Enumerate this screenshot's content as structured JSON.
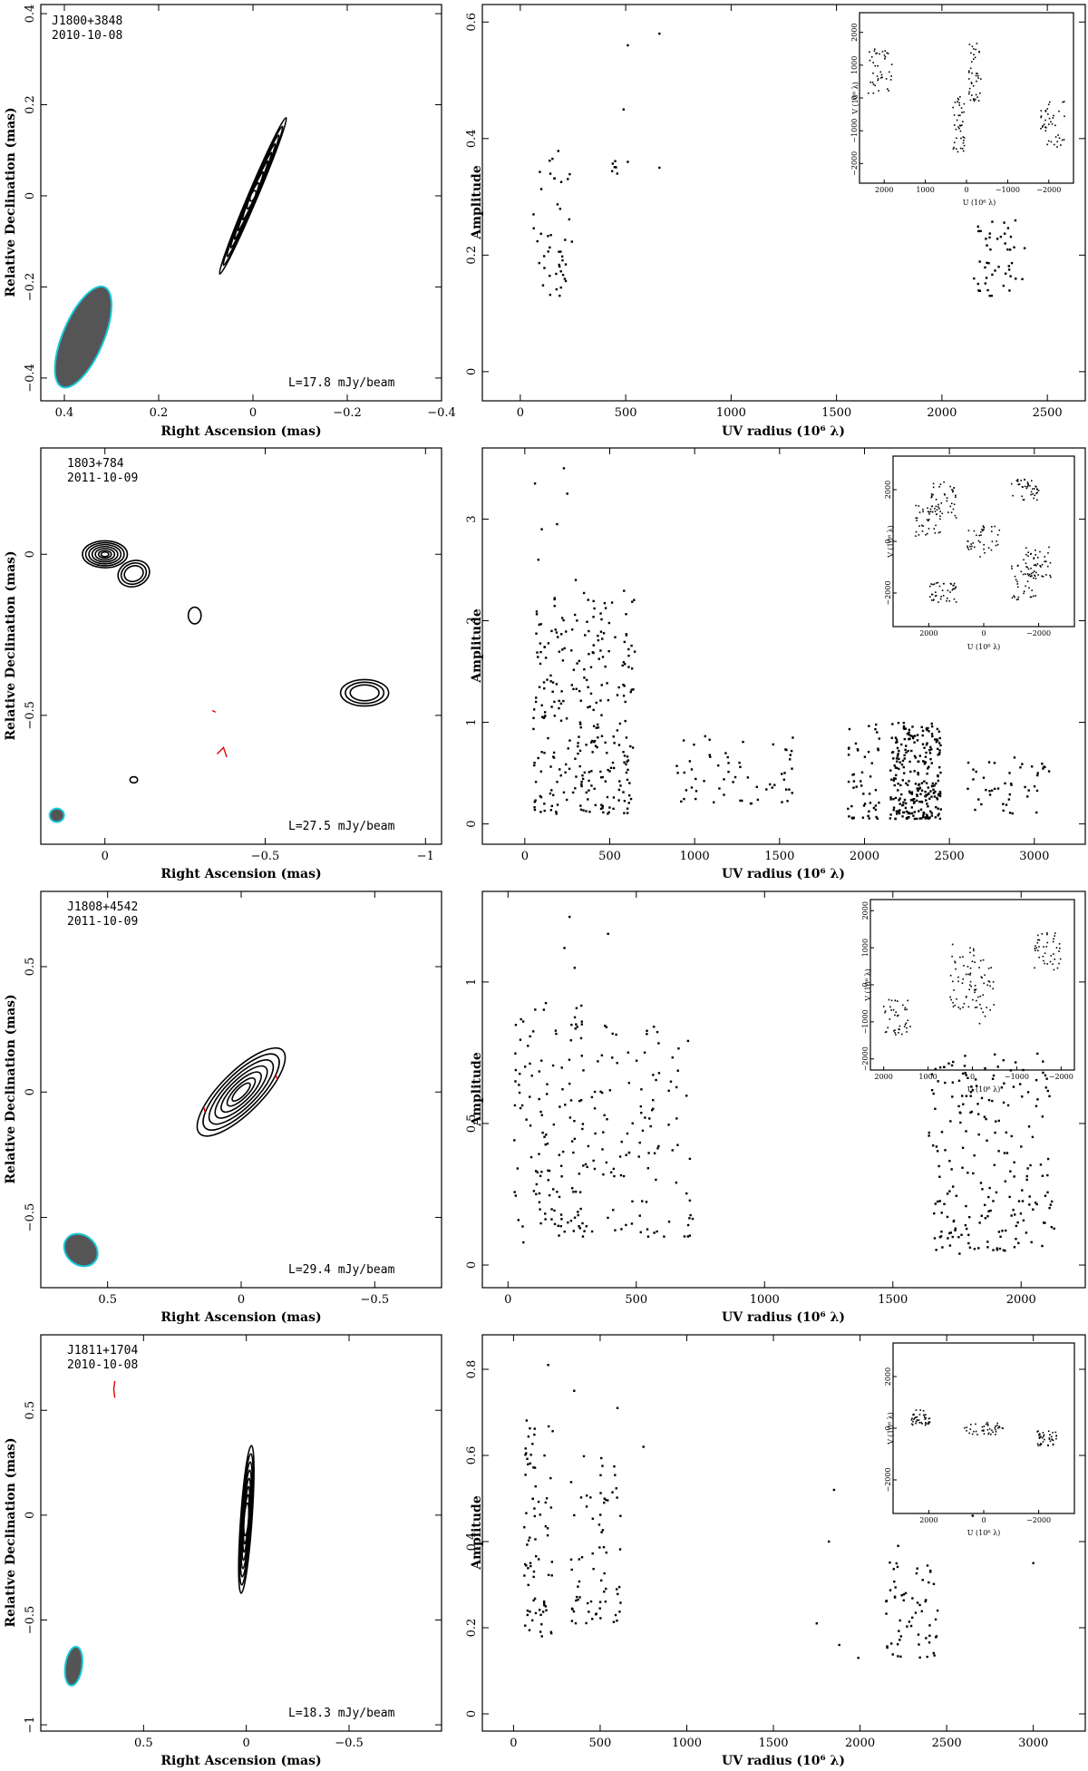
{
  "chart_data": [
    {
      "type": "contour",
      "source": "J1800+3848",
      "date": "2010-10-08",
      "level": "L=17.8 mJy/beam",
      "xlabel": "Right Ascension  (mas)",
      "ylabel": "Relative Declination  (mas)",
      "xlim": [
        0.45,
        -0.4
      ],
      "ylim": [
        -0.45,
        0.42
      ],
      "xticks": [
        {
          "v": 0.4,
          "l": "0.4"
        },
        {
          "v": 0.2,
          "l": "0.2"
        },
        {
          "v": 0,
          "l": "0"
        },
        {
          "v": -0.2,
          "l": "−0.2"
        },
        {
          "v": -0.4,
          "l": "−0.4"
        }
      ],
      "yticks": [
        {
          "v": 0.4,
          "l": "0.4"
        },
        {
          "v": 0.2,
          "l": "0.2"
        },
        {
          "v": 0,
          "l": "0"
        },
        {
          "v": -0.2,
          "l": "−0.2"
        },
        {
          "v": -0.4,
          "l": "−0.4"
        }
      ],
      "beam": {
        "x": 0.36,
        "y": -0.31,
        "major": 0.23,
        "minor": 0.028,
        "pa_deg": -67
      },
      "components": [
        {
          "x": 0.0,
          "y": 0.0,
          "rx": [
            0.18,
            0.16,
            0.14,
            0.12,
            0.1,
            0.08,
            0.055,
            0.03,
            0.012
          ],
          "ry": 0.055,
          "angle_deg": -67
        }
      ],
      "negatives": []
    },
    {
      "type": "scatter",
      "xlabel": "UV radius  (10⁶ λ)",
      "ylabel": "Amplitude",
      "xlim": [
        -180,
        2680
      ],
      "ylim": [
        -0.05,
        0.63
      ],
      "xticks": [
        {
          "v": 0,
          "l": "0"
        },
        {
          "v": 500,
          "l": "500"
        },
        {
          "v": 1000,
          "l": "1000"
        },
        {
          "v": 1500,
          "l": "1500"
        },
        {
          "v": 2000,
          "l": "2000"
        },
        {
          "v": 2500,
          "l": "2500"
        }
      ],
      "yticks": [
        {
          "v": 0,
          "l": "0"
        },
        {
          "v": 0.2,
          "l": "0.2"
        },
        {
          "v": 0.4,
          "l": "0.4"
        },
        {
          "v": 0.6,
          "l": "0.6"
        }
      ],
      "clusters": [
        {
          "x": [
            60,
            250
          ],
          "y": [
            0.13,
            0.38
          ],
          "n": 45
        },
        {
          "x": [
            430,
            460
          ],
          "y": [
            0.32,
            0.37
          ],
          "n": 6
        },
        {
          "x": [
            2150,
            2400
          ],
          "y": [
            0.13,
            0.26
          ],
          "n": 45
        }
      ],
      "points": [
        [
          490,
          0.45
        ],
        [
          510,
          0.56
        ],
        [
          660,
          0.58
        ],
        [
          660,
          0.35
        ],
        [
          510,
          0.36
        ],
        [
          2300,
          0.22
        ]
      ],
      "inset": {
        "xlabel": "U (10⁶ λ)",
        "ylabel": "V (10⁶ λ)",
        "xticks": [
          {
            "v": 2000,
            "l": "2000"
          },
          {
            "v": 1000,
            "l": "1000"
          },
          {
            "v": 0,
            "l": "0"
          },
          {
            "v": -1000,
            "l": "−1000"
          },
          {
            "v": -2000,
            "l": "−2000"
          }
        ],
        "yticks": [
          {
            "v": 2000,
            "l": "2000"
          },
          {
            "v": 1000,
            "l": "1000"
          },
          {
            "v": 0,
            "l": "0"
          },
          {
            "v": -1000,
            "l": "−1000"
          },
          {
            "v": -2000,
            "l": "−2000"
          }
        ],
        "lim": 2600,
        "clusters": [
          [
            2100,
            800,
            300,
            700
          ],
          [
            -2100,
            -800,
            300,
            700
          ],
          [
            200,
            -800,
            150,
            900
          ],
          [
            -200,
            800,
            150,
            900
          ]
        ]
      }
    },
    {
      "type": "contour",
      "source": "1803+784",
      "date": "2011-10-09",
      "level": "L=27.5 mJy/beam",
      "xlabel": "Right Ascension  (mas)",
      "ylabel": "Relative Declination  (mas)",
      "xlim": [
        0.2,
        -1.05
      ],
      "ylim": [
        -0.9,
        0.33
      ],
      "xticks": [
        {
          "v": 0,
          "l": "0"
        },
        {
          "v": -0.5,
          "l": "−0.5"
        },
        {
          "v": -1,
          "l": "−1"
        }
      ],
      "yticks": [
        {
          "v": 0,
          "l": "0"
        },
        {
          "v": -0.5,
          "l": "−0.5"
        }
      ],
      "beam": {
        "x": 0.15,
        "y": -0.81,
        "major": 0.045,
        "minor": 0.042,
        "pa_deg": 0
      },
      "components": [
        {
          "x": 0.0,
          "y": 0.0,
          "rx": [
            0.07,
            0.06,
            0.05,
            0.04,
            0.03,
            0.02,
            0.012
          ],
          "ry": 0.6,
          "angle_deg": 0
        },
        {
          "x": -0.09,
          "y": -0.06,
          "rx": [
            0.05,
            0.04,
            0.03
          ],
          "ry": 0.8,
          "angle_deg": -20
        },
        {
          "x": -0.81,
          "y": -0.43,
          "rx": [
            0.075,
            0.06,
            0.045
          ],
          "ry": 0.55,
          "angle_deg": 0
        },
        {
          "x": -0.28,
          "y": -0.19,
          "rx": [
            0.02
          ],
          "ry": 1.3,
          "angle_deg": 0
        },
        {
          "x": -0.09,
          "y": -0.7,
          "rx": [
            0.012
          ],
          "ry": 0.8,
          "angle_deg": 0
        }
      ],
      "negatives": [
        [
          [
            -0.35,
            -0.62
          ],
          [
            -0.37,
            -0.6
          ],
          [
            -0.38,
            -0.63
          ]
        ],
        [
          [
            -0.335,
            -0.485
          ],
          [
            -0.345,
            -0.49
          ]
        ]
      ]
    },
    {
      "type": "scatter",
      "xlabel": "UV radius  (10⁶ λ)",
      "ylabel": "Amplitude",
      "xlim": [
        -250,
        3300
      ],
      "ylim": [
        -0.2,
        3.7
      ],
      "xticks": [
        {
          "v": 0,
          "l": "0"
        },
        {
          "v": 500,
          "l": "500"
        },
        {
          "v": 1000,
          "l": "1000"
        },
        {
          "v": 1500,
          "l": "1500"
        },
        {
          "v": 2000,
          "l": "2000"
        },
        {
          "v": 2500,
          "l": "2500"
        },
        {
          "v": 3000,
          "l": "3000"
        }
      ],
      "yticks": [
        {
          "v": 0,
          "l": "0"
        },
        {
          "v": 1,
          "l": "1"
        },
        {
          "v": 2,
          "l": "2"
        },
        {
          "v": 3,
          "l": "3"
        }
      ],
      "clusters": [
        {
          "x": [
            50,
            650
          ],
          "y": [
            0.1,
            2.3
          ],
          "n": 280
        },
        {
          "x": [
            880,
            1600
          ],
          "y": [
            0.2,
            0.9
          ],
          "n": 60
        },
        {
          "x": [
            1900,
            2100
          ],
          "y": [
            0.05,
            1.0
          ],
          "n": 50
        },
        {
          "x": [
            2150,
            2450
          ],
          "y": [
            0.05,
            1.0
          ],
          "n": 260
        },
        {
          "x": [
            2600,
            3100
          ],
          "y": [
            0.1,
            0.7
          ],
          "n": 45
        }
      ],
      "points": [
        [
          60,
          3.35
        ],
        [
          100,
          2.9
        ],
        [
          230,
          3.5
        ],
        [
          250,
          3.25
        ],
        [
          190,
          2.95
        ],
        [
          80,
          2.6
        ],
        [
          300,
          2.4
        ]
      ],
      "inset": {
        "xlabel": "U (10⁶ λ)",
        "ylabel": "V (10⁶ λ)",
        "xticks": [
          {
            "v": 2000,
            "l": "2000"
          },
          {
            "v": 0,
            "l": "0"
          },
          {
            "v": -2000,
            "l": "−2000"
          }
        ],
        "yticks": [
          {
            "v": 2000,
            "l": "2000"
          },
          {
            "v": 0,
            "l": "0"
          },
          {
            "v": -2000,
            "l": "−2000"
          }
        ],
        "lim": 3300,
        "clusters": [
          [
            1500,
            1500,
            500,
            800
          ],
          [
            -1500,
            -1500,
            500,
            800
          ],
          [
            -1500,
            2000,
            500,
            400
          ],
          [
            1500,
            -2000,
            500,
            400
          ],
          [
            -2000,
            -800,
            500,
            600
          ],
          [
            2000,
            800,
            500,
            600
          ],
          [
            0,
            0,
            600,
            600
          ]
        ]
      }
    },
    {
      "type": "contour",
      "source": "J1808+4542",
      "date": "2011-10-09",
      "level": "L=29.4 mJy/beam",
      "xlabel": "Right Ascension  (mas)",
      "ylabel": "Relative Declination  (mas)",
      "xlim": [
        0.75,
        -0.75
      ],
      "ylim": [
        -0.78,
        0.8
      ],
      "xticks": [
        {
          "v": 0.5,
          "l": "0.5"
        },
        {
          "v": 0,
          "l": "0"
        },
        {
          "v": -0.5,
          "l": "−0.5"
        }
      ],
      "yticks": [
        {
          "v": 0.5,
          "l": "0.5"
        },
        {
          "v": 0,
          "l": "0"
        },
        {
          "v": -0.5,
          "l": "−0.5"
        }
      ],
      "beam": {
        "x": 0.6,
        "y": -0.63,
        "major": 0.11,
        "minor": 0.045,
        "pa_deg": -50
      },
      "components": [
        {
          "x": 0.0,
          "y": 0.0,
          "rx": [
            0.22,
            0.19,
            0.16,
            0.13,
            0.1,
            0.07,
            0.045
          ],
          "ry": 0.35,
          "angle_deg": -45
        }
      ],
      "negatives": [
        [
          [
            0.14,
            -0.06
          ],
          [
            0.135,
            -0.08
          ]
        ],
        [
          [
            -0.13,
            0.07
          ],
          [
            -0.135,
            0.05
          ]
        ]
      ]
    },
    {
      "type": "scatter",
      "xlabel": "UV radius  (10⁶ λ)",
      "ylabel": "Amplitude",
      "xlim": [
        -100,
        2250
      ],
      "ylim": [
        -0.08,
        1.32
      ],
      "xticks": [
        {
          "v": 0,
          "l": "0"
        },
        {
          "v": 500,
          "l": "500"
        },
        {
          "v": 1000,
          "l": "1000"
        },
        {
          "v": 1500,
          "l": "1500"
        },
        {
          "v": 2000,
          "l": "2000"
        }
      ],
      "yticks": [
        {
          "v": 0,
          "l": "0"
        },
        {
          "v": 0.5,
          "l": "0.5"
        },
        {
          "v": 1,
          "l": "1"
        }
      ],
      "clusters": [
        {
          "x": [
            20,
            300
          ],
          "y": [
            0.1,
            0.95
          ],
          "n": 130
        },
        {
          "x": [
            300,
            720
          ],
          "y": [
            0.1,
            0.85
          ],
          "n": 110
        },
        {
          "x": [
            1640,
            2130
          ],
          "y": [
            0.05,
            0.75
          ],
          "n": 210
        }
      ],
      "points": [
        [
          240,
          1.23
        ],
        [
          390,
          1.17
        ],
        [
          220,
          1.12
        ],
        [
          60,
          0.08
        ],
        [
          1760,
          0.04
        ],
        [
          260,
          1.05
        ]
      ],
      "inset": {
        "xlabel": "U (10⁶ λ)",
        "ylabel": "V (10⁶ λ)",
        "xticks": [
          {
            "v": 2000,
            "l": "2000"
          },
          {
            "v": 1000,
            "l": "1000"
          },
          {
            "v": 0,
            "l": "0"
          },
          {
            "v": -1000,
            "l": "−1000"
          },
          {
            "v": -2000,
            "l": "−2000"
          }
        ],
        "yticks": [
          {
            "v": 2000,
            "l": "2000"
          },
          {
            "v": 1000,
            "l": "1000"
          },
          {
            "v": 0,
            "l": "0"
          },
          {
            "v": -1000,
            "l": "−1000"
          },
          {
            "v": -2000,
            "l": "−2000"
          }
        ],
        "lim": 2300,
        "clusters": [
          [
            1700,
            -900,
            300,
            500
          ],
          [
            -1700,
            900,
            300,
            500
          ],
          [
            200,
            200,
            300,
            900
          ],
          [
            -200,
            -200,
            300,
            900
          ]
        ]
      }
    },
    {
      "type": "contour",
      "source": "J1811+1704",
      "date": "2010-10-08",
      "level": "L=18.3 mJy/beam",
      "xlabel": "Right Ascension  (mas)",
      "ylabel": "Relative Declination  (mas)",
      "xlim": [
        1.0,
        -0.95
      ],
      "ylim": [
        -1.03,
        0.86
      ],
      "xticks": [
        {
          "v": 0.5,
          "l": "0.5"
        },
        {
          "v": 0,
          "l": "0"
        },
        {
          "v": -0.5,
          "l": "−0.5"
        }
      ],
      "yticks": [
        {
          "v": 0.5,
          "l": "0.5"
        },
        {
          "v": 0,
          "l": "0"
        },
        {
          "v": -0.5,
          "l": "−0.5"
        },
        {
          "v": -1,
          "l": "−1"
        }
      ],
      "beam": {
        "x": 0.84,
        "y": -0.72,
        "major": 0.19,
        "minor": 0.025,
        "pa_deg": -82
      },
      "components": [
        {
          "x": 0.0,
          "y": -0.02,
          "rx": [
            0.36,
            0.32,
            0.28,
            0.24,
            0.2,
            0.16,
            0.12,
            0.08
          ],
          "ry": 0.17,
          "angle_deg": -86
        }
      ],
      "negatives": [
        [
          [
            0.64,
            0.64
          ],
          [
            0.645,
            0.6
          ],
          [
            0.64,
            0.56
          ]
        ]
      ]
    },
    {
      "type": "scatter",
      "xlabel": "UV radius  (10⁶ λ)",
      "ylabel": "Amplitude",
      "xlim": [
        -180,
        3300
      ],
      "ylim": [
        -0.04,
        0.88
      ],
      "xticks": [
        {
          "v": 0,
          "l": "0"
        },
        {
          "v": 500,
          "l": "500"
        },
        {
          "v": 1000,
          "l": "1000"
        },
        {
          "v": 1500,
          "l": "1500"
        },
        {
          "v": 2000,
          "l": "2000"
        },
        {
          "v": 2500,
          "l": "2500"
        },
        {
          "v": 3000,
          "l": "3000"
        }
      ],
      "yticks": [
        {
          "v": 0,
          "l": "0"
        },
        {
          "v": 0.2,
          "l": "0.2"
        },
        {
          "v": 0.4,
          "l": "0.4"
        },
        {
          "v": 0.6,
          "l": "0.6"
        },
        {
          "v": 0.8,
          "l": "0.8"
        }
      ],
      "clusters": [
        {
          "x": [
            60,
            230
          ],
          "y": [
            0.18,
            0.7
          ],
          "n": 75
        },
        {
          "x": [
            330,
            620
          ],
          "y": [
            0.21,
            0.6
          ],
          "n": 70
        },
        {
          "x": [
            2150,
            2450
          ],
          "y": [
            0.13,
            0.36
          ],
          "n": 60
        }
      ],
      "points": [
        [
          200,
          0.81
        ],
        [
          350,
          0.75
        ],
        [
          600,
          0.71
        ],
        [
          750,
          0.62
        ],
        [
          1850,
          0.52
        ],
        [
          1820,
          0.4
        ],
        [
          2650,
          0.46
        ],
        [
          3000,
          0.35
        ],
        [
          1750,
          0.21
        ],
        [
          1880,
          0.16
        ],
        [
          1990,
          0.13
        ],
        [
          2220,
          0.39
        ]
      ],
      "inset": {
        "xlabel": "U (10⁶ λ)",
        "ylabel": "V (10⁶ λ)",
        "xticks": [
          {
            "v": 2000,
            "l": "2000"
          },
          {
            "v": 0,
            "l": "0"
          },
          {
            "v": -2000,
            "l": "−2000"
          }
        ],
        "yticks": [
          {
            "v": 2000,
            "l": "2000"
          },
          {
            "v": 0,
            "l": "0"
          },
          {
            "v": -2000,
            "l": "−2000"
          }
        ],
        "lim": 3300,
        "clusters": [
          [
            2300,
            400,
            350,
            300
          ],
          [
            -2300,
            -400,
            350,
            300
          ],
          [
            0,
            0,
            700,
            250
          ]
        ]
      }
    }
  ]
}
